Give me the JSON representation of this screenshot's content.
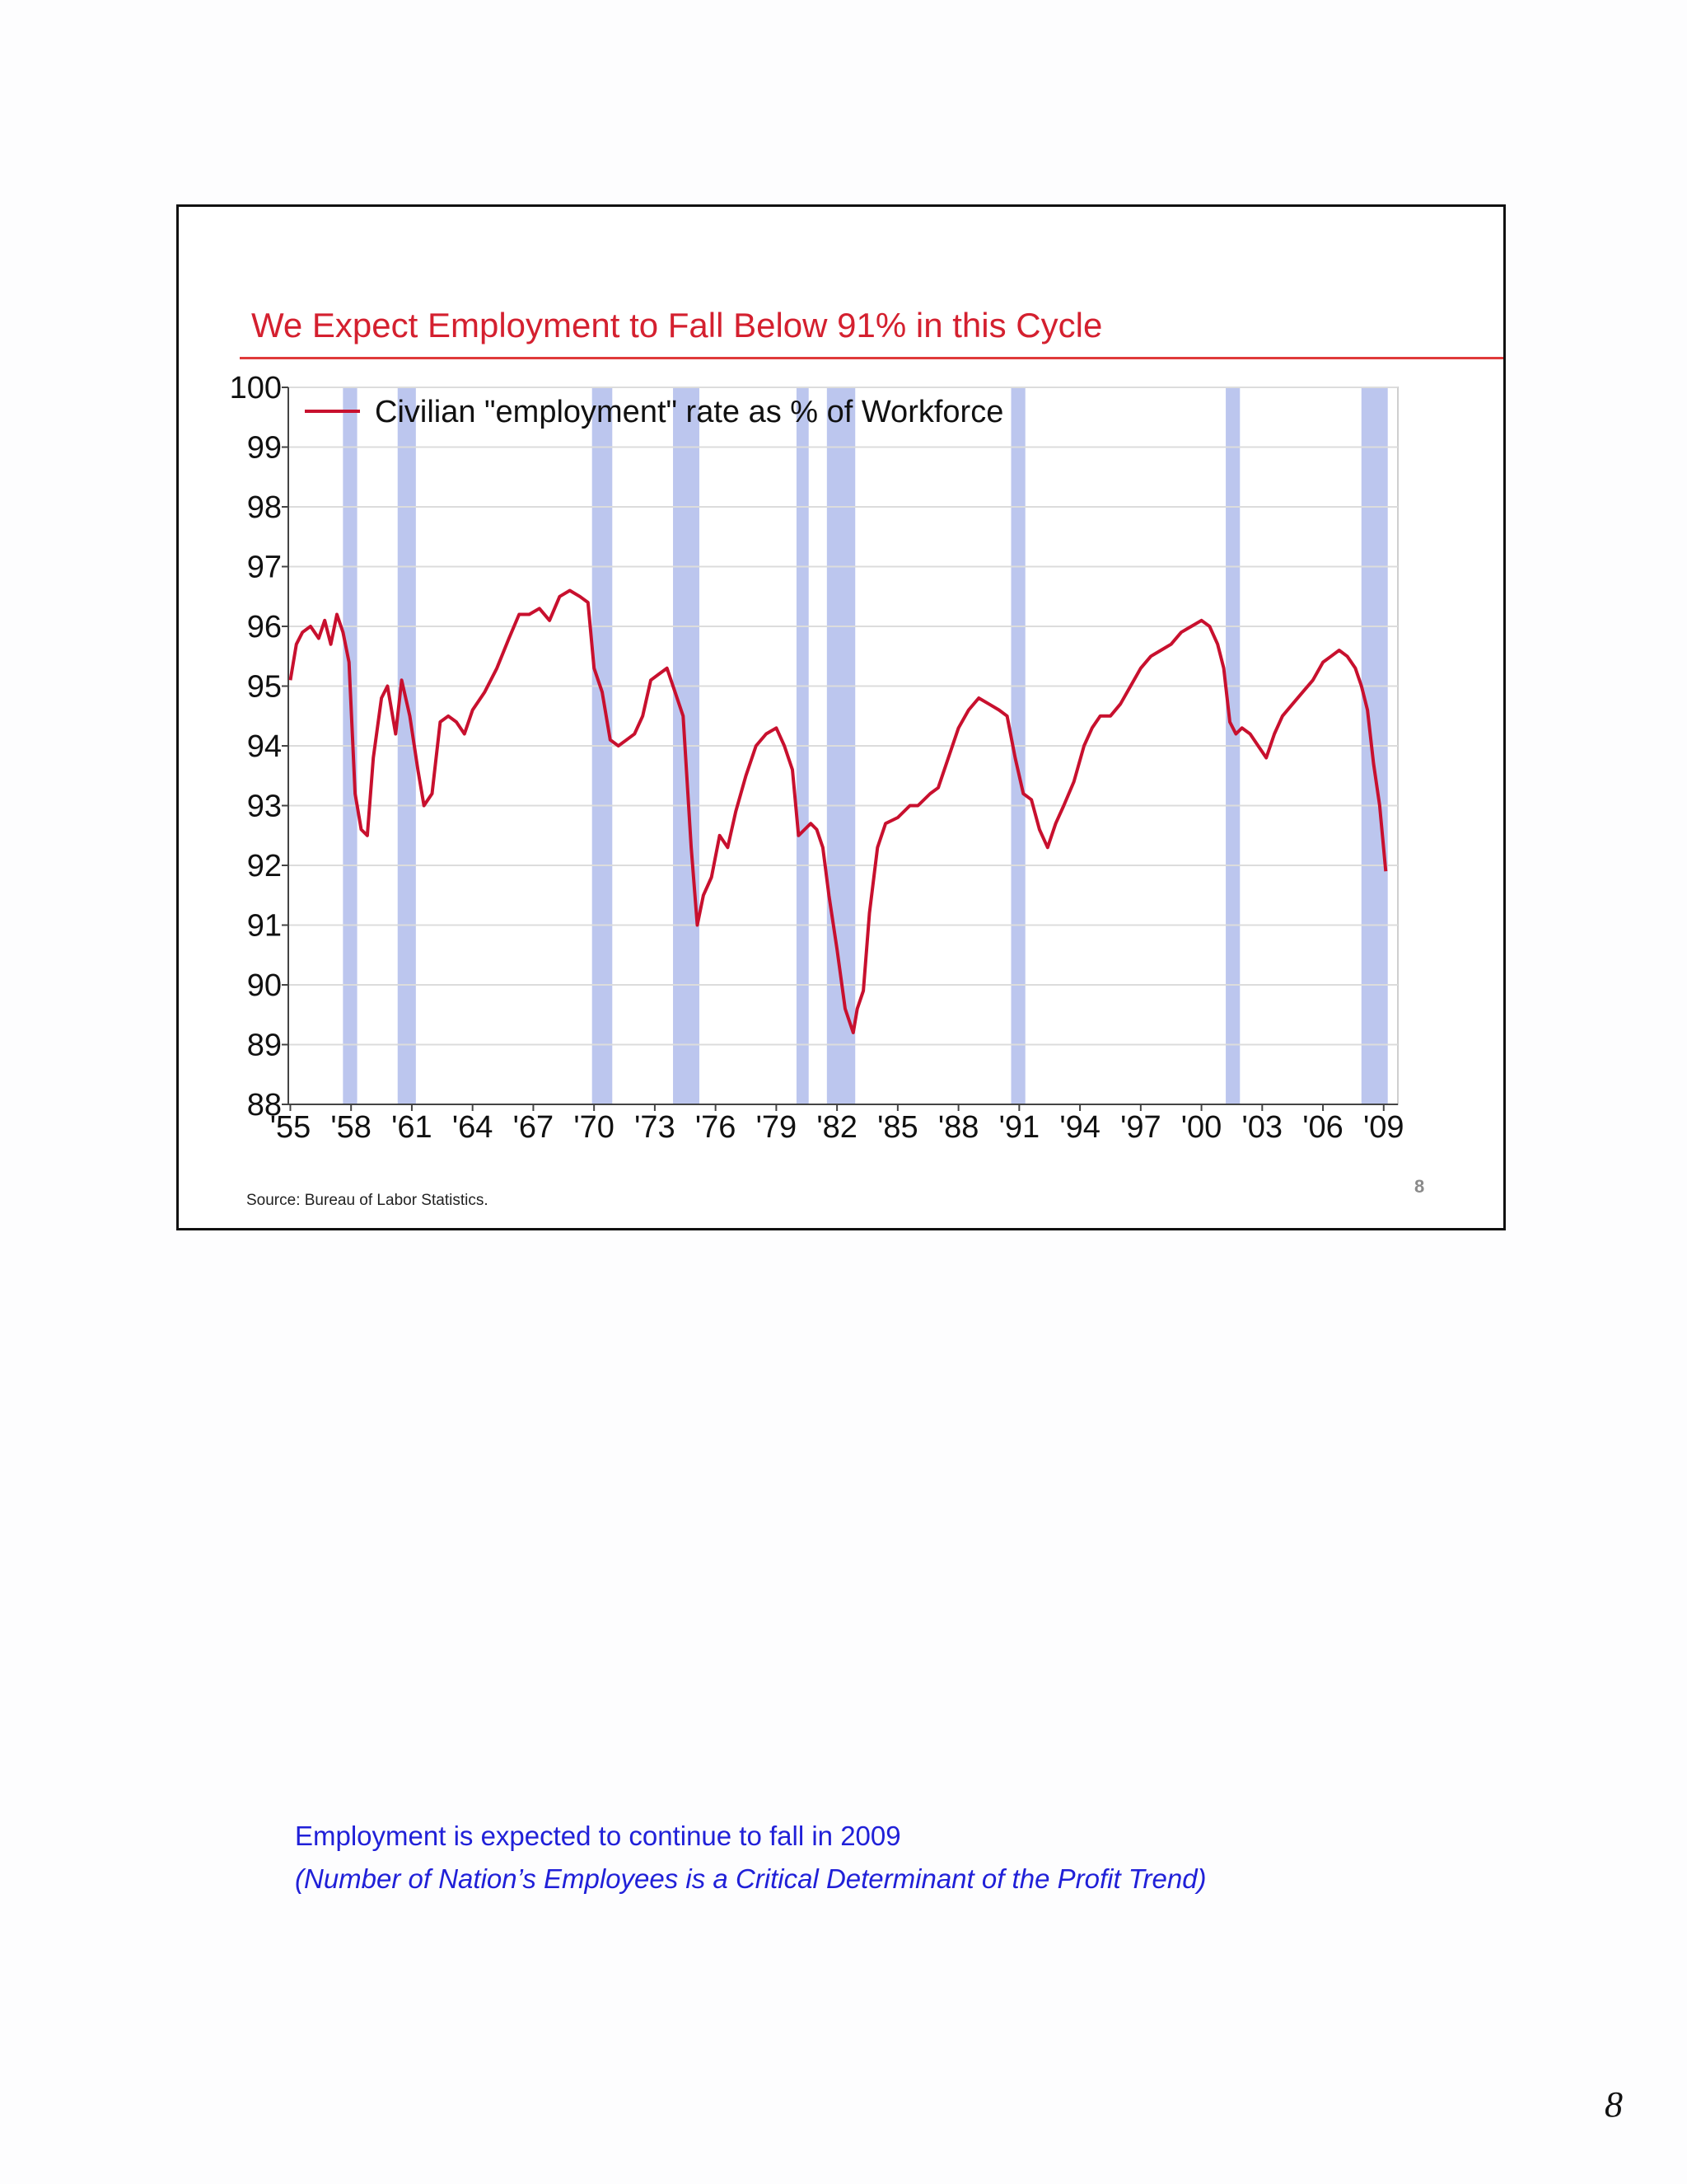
{
  "slide": {
    "title": "We Expect Employment to Fall Below 91% in this Cycle",
    "source": "Source: Bureau of Labor Statistics.",
    "slide_number": "8"
  },
  "caption": {
    "line1": "Employment is expected to continue to fall in 2009",
    "line2": "(Number of Nation’s Employees is a Critical Determinant of the Profit Trend)"
  },
  "page_number": "8",
  "colors": {
    "title": "#d4202f",
    "series": "#c8102e",
    "recession": "#bcc6ee",
    "grid": "#dcdcdc",
    "caption": "#2020d8"
  },
  "chart_data": {
    "type": "line",
    "title": "We Expect Employment to Fall Below 91% in this Cycle",
    "xlabel": "",
    "ylabel": "",
    "ylim": [
      88,
      100
    ],
    "xlim": [
      1954.9,
      2009.7
    ],
    "yticks": [
      100,
      99,
      98,
      97,
      96,
      95,
      94,
      93,
      92,
      91,
      90,
      89,
      88
    ],
    "xticks": [
      {
        "value": 1955,
        "label": "'55"
      },
      {
        "value": 1958,
        "label": "'58"
      },
      {
        "value": 1961,
        "label": "'61"
      },
      {
        "value": 1964,
        "label": "'64"
      },
      {
        "value": 1967,
        "label": "'67"
      },
      {
        "value": 1970,
        "label": "'70"
      },
      {
        "value": 1973,
        "label": "'73"
      },
      {
        "value": 1976,
        "label": "'76"
      },
      {
        "value": 1979,
        "label": "'79"
      },
      {
        "value": 1982,
        "label": "'82"
      },
      {
        "value": 1985,
        "label": "'85"
      },
      {
        "value": 1988,
        "label": "'88"
      },
      {
        "value": 1991,
        "label": "'91"
      },
      {
        "value": 1994,
        "label": "'94"
      },
      {
        "value": 1997,
        "label": "'97"
      },
      {
        "value": 2000,
        "label": "'00"
      },
      {
        "value": 2003,
        "label": "'03"
      },
      {
        "value": 2006,
        "label": "'06"
      },
      {
        "value": 2009,
        "label": "'09"
      }
    ],
    "grid": true,
    "legend": "top-left",
    "recessions": [
      [
        1957.6,
        1958.3
      ],
      [
        1960.3,
        1961.2
      ],
      [
        1969.9,
        1970.9
      ],
      [
        1973.9,
        1975.2
      ],
      [
        1980.0,
        1980.6
      ],
      [
        1981.5,
        1982.9
      ],
      [
        1990.6,
        1991.3
      ],
      [
        2001.2,
        2001.9
      ],
      [
        2007.9,
        2009.2
      ]
    ],
    "series": [
      {
        "name": "Civilian \"employment\" rate as % of Workforce",
        "x": [
          1955.0,
          1955.3,
          1955.6,
          1956.0,
          1956.4,
          1956.7,
          1957.0,
          1957.3,
          1957.6,
          1957.9,
          1958.2,
          1958.5,
          1958.8,
          1959.1,
          1959.5,
          1959.8,
          1960.2,
          1960.5,
          1960.9,
          1961.3,
          1961.6,
          1962.0,
          1962.4,
          1962.8,
          1963.2,
          1963.6,
          1964.0,
          1964.6,
          1965.2,
          1965.8,
          1966.3,
          1966.8,
          1967.3,
          1967.8,
          1968.3,
          1968.8,
          1969.3,
          1969.7,
          1970.0,
          1970.4,
          1970.8,
          1971.2,
          1971.6,
          1972.0,
          1972.4,
          1972.8,
          1973.2,
          1973.6,
          1974.0,
          1974.4,
          1974.8,
          1975.1,
          1975.4,
          1975.8,
          1976.2,
          1976.6,
          1977.0,
          1977.5,
          1978.0,
          1978.5,
          1979.0,
          1979.4,
          1979.8,
          1980.1,
          1980.4,
          1980.7,
          1981.0,
          1981.3,
          1981.6,
          1982.0,
          1982.4,
          1982.8,
          1983.0,
          1983.3,
          1983.6,
          1984.0,
          1984.4,
          1985.0,
          1985.6,
          1986.0,
          1986.6,
          1987.0,
          1987.5,
          1988.0,
          1988.5,
          1989.0,
          1989.5,
          1990.0,
          1990.4,
          1990.8,
          1991.2,
          1991.6,
          1992.0,
          1992.4,
          1992.8,
          1993.2,
          1993.7,
          1994.2,
          1994.6,
          1995.0,
          1995.5,
          1996.0,
          1996.5,
          1997.0,
          1997.5,
          1998.0,
          1998.5,
          1999.0,
          1999.5,
          2000.0,
          2000.4,
          2000.8,
          2001.1,
          2001.4,
          2001.7,
          2002.0,
          2002.4,
          2002.8,
          2003.2,
          2003.6,
          2004.0,
          2004.5,
          2005.0,
          2005.5,
          2006.0,
          2006.4,
          2006.8,
          2007.2,
          2007.6,
          2007.9,
          2008.2,
          2008.5,
          2008.8,
          2009.1
        ],
        "values": [
          95.1,
          95.7,
          95.9,
          96.0,
          95.8,
          96.1,
          95.7,
          96.2,
          95.9,
          95.4,
          93.2,
          92.6,
          92.5,
          93.8,
          94.8,
          95.0,
          94.2,
          95.1,
          94.5,
          93.6,
          93.0,
          93.2,
          94.4,
          94.5,
          94.4,
          94.2,
          94.6,
          94.9,
          95.3,
          95.8,
          96.2,
          96.2,
          96.3,
          96.1,
          96.5,
          96.6,
          96.5,
          96.4,
          95.3,
          94.9,
          94.1,
          94.0,
          94.1,
          94.2,
          94.5,
          95.1,
          95.2,
          95.3,
          94.9,
          94.5,
          92.3,
          91.0,
          91.5,
          91.8,
          92.5,
          92.3,
          92.9,
          93.5,
          94.0,
          94.2,
          94.3,
          94.0,
          93.6,
          92.5,
          92.6,
          92.7,
          92.6,
          92.3,
          91.5,
          90.6,
          89.6,
          89.2,
          89.6,
          89.9,
          91.2,
          92.3,
          92.7,
          92.8,
          93.0,
          93.0,
          93.2,
          93.3,
          93.8,
          94.3,
          94.6,
          94.8,
          94.7,
          94.6,
          94.5,
          93.8,
          93.2,
          93.1,
          92.6,
          92.3,
          92.7,
          93.0,
          93.4,
          94.0,
          94.3,
          94.5,
          94.5,
          94.7,
          95.0,
          95.3,
          95.5,
          95.6,
          95.7,
          95.9,
          96.0,
          96.1,
          96.0,
          95.7,
          95.3,
          94.4,
          94.2,
          94.3,
          94.2,
          94.0,
          93.8,
          94.2,
          94.5,
          94.7,
          94.9,
          95.1,
          95.4,
          95.5,
          95.6,
          95.5,
          95.3,
          95.0,
          94.6,
          93.7,
          93.0,
          91.9
        ]
      }
    ]
  }
}
